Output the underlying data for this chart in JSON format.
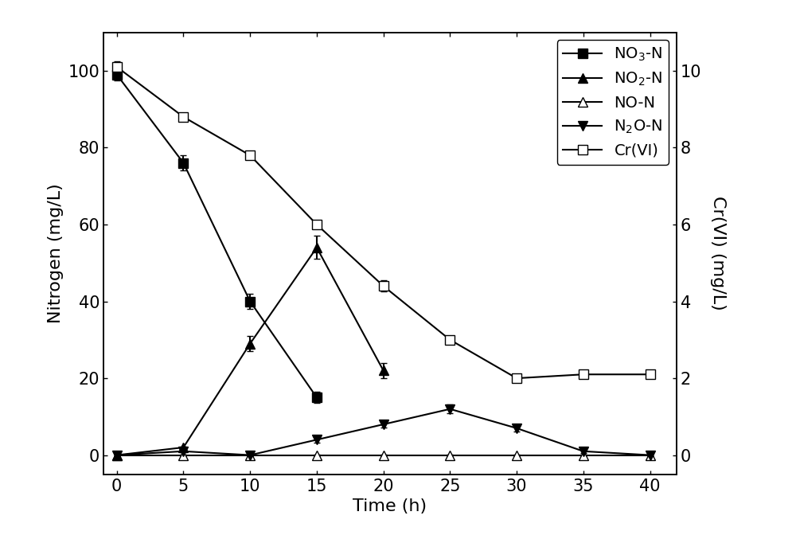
{
  "time": [
    0,
    5,
    10,
    15,
    20,
    25,
    30,
    35,
    40
  ],
  "NO3_N": [
    99,
    76,
    40,
    15,
    null,
    null,
    null,
    null,
    null
  ],
  "NO3_N_err": [
    1.5,
    2.0,
    2.0,
    1.5,
    null,
    null,
    null,
    null,
    null
  ],
  "NO2_N": [
    0,
    2,
    29,
    54,
    22,
    null,
    null,
    null,
    null
  ],
  "NO2_N_err": [
    0.3,
    0.3,
    2.0,
    3.0,
    2.0,
    null,
    null,
    null,
    null
  ],
  "NO_N": [
    0,
    0,
    0,
    0,
    0,
    0,
    0,
    0,
    0
  ],
  "NO_N_err": [
    0.2,
    0.2,
    0.2,
    0.2,
    0.2,
    0.2,
    0.2,
    0.2,
    0.2
  ],
  "N2O_N": [
    0,
    1,
    0,
    4,
    8,
    12,
    7,
    1,
    0
  ],
  "N2O_N_err": [
    0.3,
    0.3,
    0.3,
    0.8,
    0.8,
    1.2,
    0.8,
    0.4,
    0.3
  ],
  "CrVI": [
    10.1,
    8.8,
    7.8,
    6.0,
    4.4,
    3.0,
    2.0,
    2.1,
    2.1
  ],
  "CrVI_err": [
    0.15,
    0.1,
    0.1,
    0.1,
    0.15,
    0.1,
    0.1,
    0.1,
    0.1
  ],
  "ylabel_left": "Nitrogen (mg/L)",
  "ylabel_right": "Cr(VI) (mg/L)",
  "xlabel": "Time (h)",
  "ylim_left": [
    -5,
    110
  ],
  "ylim_right": [
    -0.5,
    11
  ],
  "yticks_left": [
    0,
    20,
    40,
    60,
    80,
    100
  ],
  "yticks_right": [
    0,
    2,
    4,
    6,
    8,
    10
  ],
  "xticks": [
    0,
    5,
    10,
    15,
    20,
    25,
    30,
    35,
    40
  ],
  "color": "black",
  "background": "white",
  "label_fontsize": 16,
  "tick_fontsize": 15,
  "legend_fontsize": 14,
  "linewidth": 1.5,
  "markersize": 8,
  "capsize": 3
}
